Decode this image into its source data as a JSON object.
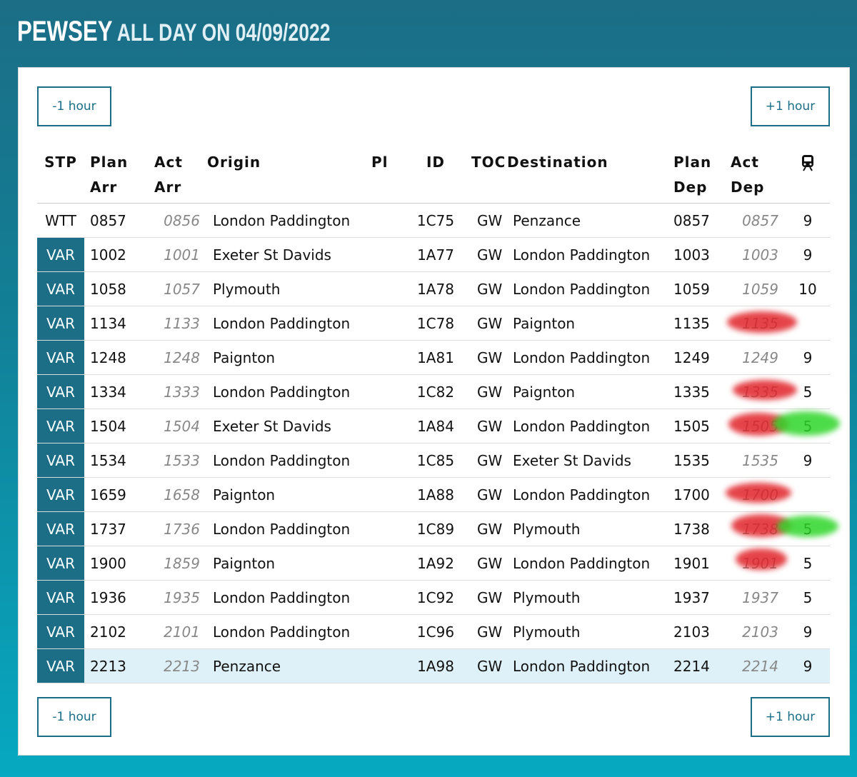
{
  "header": {
    "station": "PEWSEY",
    "subtitle": "ALL DAY ON 04/09/2022"
  },
  "controls": {
    "top": {
      "earlier": "-1 hour",
      "later": "+1 hour"
    },
    "bottom": {
      "earlier": "-1 hour",
      "later": "+1 hour"
    }
  },
  "table": {
    "columns": [
      "STP",
      "Plan Arr",
      "Act Arr",
      "Origin",
      "Pl",
      "ID",
      "TOC",
      "Destination",
      "Plan Dep",
      "Act Dep"
    ],
    "rows": [
      [
        "WTT",
        "0857",
        "0856",
        "London Paddington",
        null,
        "1C75",
        "GW",
        "Penzance",
        "0857",
        "0857",
        "9"
      ],
      [
        "VAR",
        "1002",
        "1001",
        "Exeter St Davids",
        null,
        "1A77",
        "GW",
        "London Paddington",
        "1003",
        "1003",
        "9"
      ],
      [
        "VAR",
        "1058",
        "1057",
        "Plymouth",
        null,
        "1A78",
        "GW",
        "London Paddington",
        "1059",
        "1059",
        "10"
      ],
      [
        "VAR",
        "1134",
        "1133",
        "London Paddington",
        null,
        "1C78",
        "GW",
        "Paignton",
        "1135",
        "1135",
        null
      ],
      [
        "VAR",
        "1248",
        "1248",
        "Paignton",
        null,
        "1A81",
        "GW",
        "London Paddington",
        "1249",
        "1249",
        "9"
      ],
      [
        "VAR",
        "1334",
        "1333",
        "London Paddington",
        null,
        "1C82",
        "GW",
        "Paignton",
        "1335",
        "1335",
        "5"
      ],
      [
        "VAR",
        "1504",
        "1504",
        "Exeter St Davids",
        null,
        "1A84",
        "GW",
        "London Paddington",
        "1505",
        "1505",
        "5"
      ],
      [
        "VAR",
        "1534",
        "1533",
        "London Paddington",
        null,
        "1C85",
        "GW",
        "Exeter St Davids",
        "1535",
        "1535",
        "9"
      ],
      [
        "VAR",
        "1659",
        "1658",
        "Paignton",
        null,
        "1A88",
        "GW",
        "London Paddington",
        "1700",
        "1700",
        null
      ],
      [
        "VAR",
        "1737",
        "1736",
        "London Paddington",
        null,
        "1C89",
        "GW",
        "Plymouth",
        "1738",
        "1738",
        "5"
      ],
      [
        "VAR",
        "1900",
        "1859",
        "Paignton",
        null,
        "1A92",
        "GW",
        "London Paddington",
        "1901",
        "1901",
        "5"
      ],
      [
        "VAR",
        "1936",
        "1935",
        "London Paddington",
        null,
        "1C92",
        "GW",
        "Plymouth",
        "1937",
        "1937",
        "5"
      ],
      [
        "VAR",
        "2102",
        "2101",
        "London Paddington",
        null,
        "1C96",
        "GW",
        "Plymouth",
        "2103",
        "2103",
        "9"
      ],
      [
        "VAR",
        "2213",
        "2213",
        "Penzance",
        null,
        "1A98",
        "GW",
        "London Paddington",
        "2214",
        "2214",
        "9"
      ]
    ]
  }
}
